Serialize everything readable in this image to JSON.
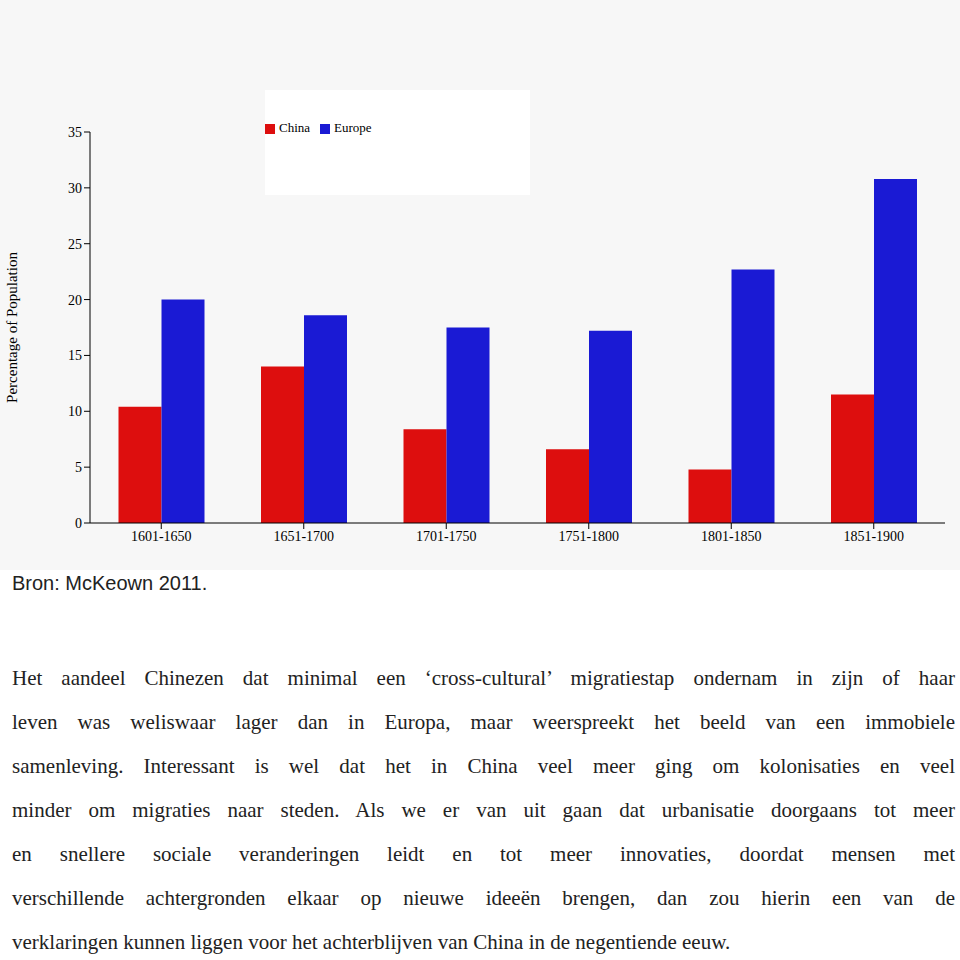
{
  "chart_data": {
    "type": "bar",
    "categories": [
      "1601-1650",
      "1651-1700",
      "1701-1750",
      "1751-1800",
      "1801-1850",
      "1851-1900"
    ],
    "series": [
      {
        "name": "China",
        "color": "#dd0e0e",
        "values": [
          10.4,
          14.0,
          8.4,
          6.6,
          4.8,
          11.5
        ]
      },
      {
        "name": "Europe",
        "color": "#1a1ad4",
        "values": [
          20.0,
          18.6,
          17.5,
          17.2,
          22.7,
          30.8
        ]
      }
    ],
    "y_label": "Percentage of Population",
    "ylim": [
      0,
      35
    ],
    "yticks": [
      0,
      5,
      10,
      15,
      20,
      25,
      30,
      35
    ],
    "grid": false,
    "legend": "top"
  },
  "source": "Bron: McKeown 2011.",
  "paragraph": [
    "Het aandeel Chinezen dat minimal een ‘cross-cultural’ migratiestap ondernam in zijn of haar",
    "leven was weliswaar lager dan in Europa, maar weerspreekt het beeld van een immobiele",
    "samenleving. Interessant is wel dat het in China veel meer ging om kolonisaties en veel",
    "minder om migraties naar steden. Als we er van uit gaan dat urbanisatie doorgaans tot meer",
    "en snellere sociale veranderingen leidt en tot meer innovaties, doordat mensen met",
    "verschillende achtergronden elkaar op nieuwe ideeën brengen, dan zou hierin een van de",
    "verklaringen kunnen liggen voor het achterblijven van China in de negentiende eeuw."
  ]
}
